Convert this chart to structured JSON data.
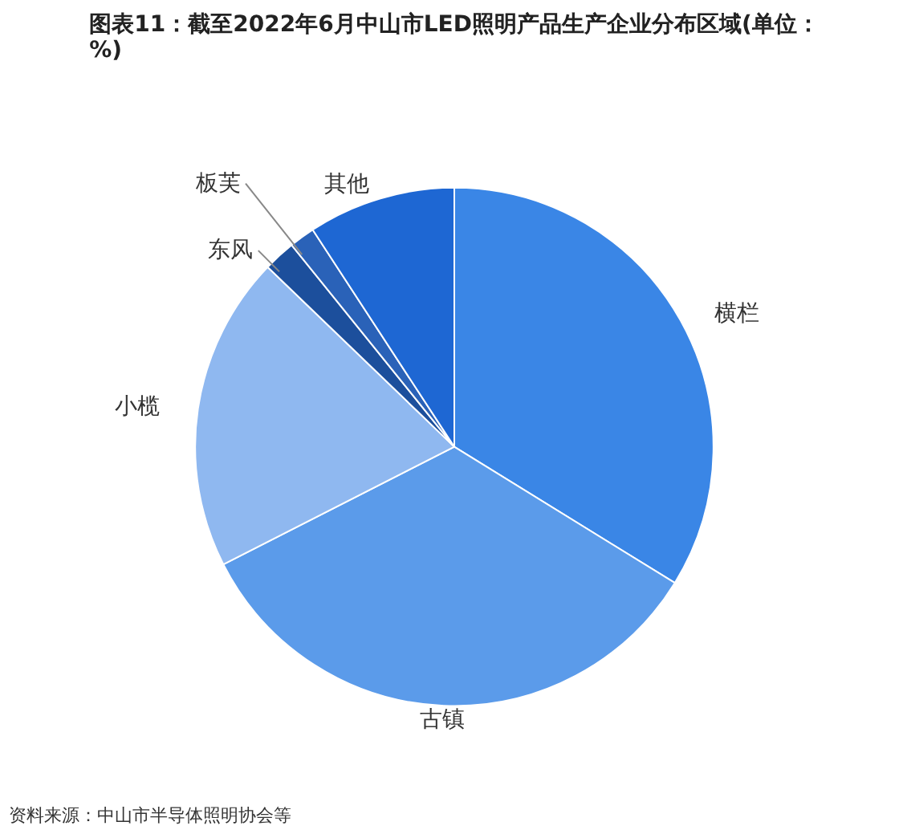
{
  "chart_data": {
    "type": "pie",
    "title": "图表11：截至2022年6月中山市LED照明产品生产企业分布区域(单位：%)",
    "categories": [
      "横栏",
      "古镇",
      "小榄",
      "东风",
      "板芙",
      "其他"
    ],
    "values": [
      33.8,
      33.7,
      19.7,
      2.0,
      1.6,
      9.2
    ],
    "colors": [
      "#3a86e6",
      "#5b9bea",
      "#8fb8f0",
      "#1c4f9c",
      "#2a62b8",
      "#1e67d3"
    ],
    "annotations": [
      "资料来源：中山市半导体照明协会等"
    ]
  }
}
